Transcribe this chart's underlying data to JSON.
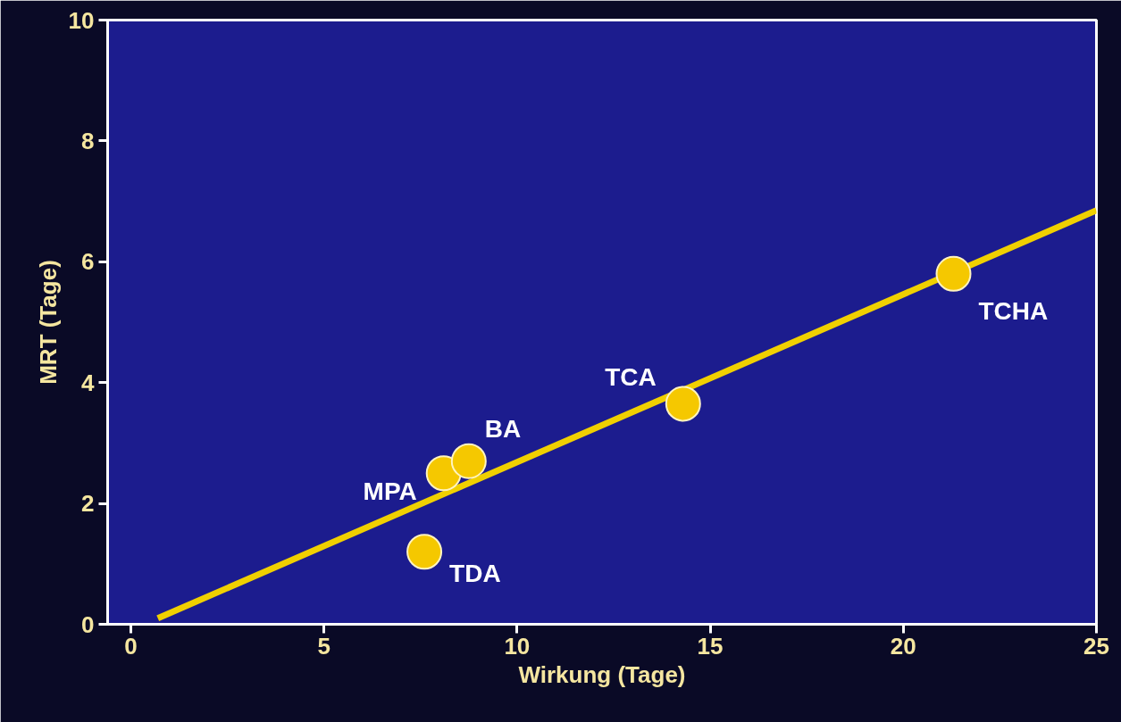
{
  "chart_data": {
    "type": "scatter",
    "xlabel": "Wirkung (Tage)",
    "ylabel": "MRT (Tage)",
    "xlim": [
      -0.6,
      25
    ],
    "ylim": [
      0,
      10
    ],
    "xticks": [
      0,
      5,
      10,
      15,
      20,
      25
    ],
    "yticks": [
      0,
      2,
      4,
      6,
      8,
      10
    ],
    "grid": false,
    "series": [
      {
        "type": "line",
        "color": "#f0d000",
        "x": [
          0.7,
          25
        ],
        "values": [
          0.1,
          6.85
        ],
        "line_style": "solid"
      },
      {
        "marker": "circle",
        "color": "#f5c800",
        "x": [
          7.6,
          8.1,
          8.75,
          14.3,
          21.3
        ],
        "values": [
          1.2,
          2.5,
          2.7,
          3.65,
          5.8
        ]
      }
    ],
    "annotations": [
      {
        "text": "TDA",
        "x": 7.6,
        "y": 1.2
      },
      {
        "text": "MPA",
        "x": 8.1,
        "y": 2.5
      },
      {
        "text": "BA",
        "x": 8.75,
        "y": 2.7
      },
      {
        "text": "TCA",
        "x": 14.3,
        "y": 3.65
      },
      {
        "text": "TCHA",
        "x": 21.3,
        "y": 5.8
      }
    ]
  }
}
